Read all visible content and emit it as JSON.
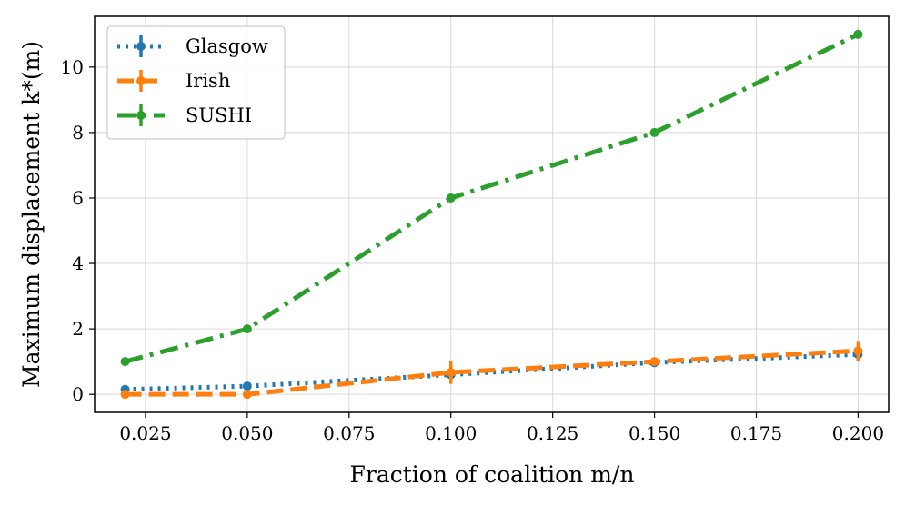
{
  "chart_data": {
    "type": "line",
    "title": "",
    "xlabel": "Fraction of coalition m/n",
    "ylabel": "Maximum displacement k*(m)",
    "xlim": [
      0.0125,
      0.2075
    ],
    "ylim": [
      -0.55,
      11.55
    ],
    "xticks": [
      0.025,
      0.05,
      0.075,
      0.1,
      0.125,
      0.15,
      0.175,
      0.2
    ],
    "xtick_labels": [
      "0.025",
      "0.050",
      "0.075",
      "0.100",
      "0.125",
      "0.150",
      "0.175",
      "0.200"
    ],
    "yticks": [
      0,
      2,
      4,
      6,
      8,
      10
    ],
    "ytick_labels": [
      "0",
      "2",
      "4",
      "6",
      "8",
      "10"
    ],
    "grid": true,
    "legend_position": "top-left",
    "x": [
      0.02,
      0.05,
      0.1,
      0.15,
      0.2
    ],
    "series": [
      {
        "name": "Glasgow",
        "values": [
          0.15,
          0.25,
          0.6,
          0.97,
          1.22
        ],
        "error": [
          0.05,
          0.08,
          0.2,
          0.1,
          0.2
        ],
        "color": "#1f77b4",
        "style": "dotted"
      },
      {
        "name": "Irish",
        "values": [
          0.0,
          0.0,
          0.67,
          1.0,
          1.33
        ],
        "error": [
          0.0,
          0.0,
          0.35,
          0.05,
          0.3
        ],
        "color": "#ff7f0e",
        "style": "dashed"
      },
      {
        "name": "SUSHI",
        "values": [
          1.0,
          2.0,
          6.0,
          8.0,
          11.0
        ],
        "error": [
          0.0,
          0.0,
          0.0,
          0.0,
          0.0
        ],
        "color": "#2ca02c",
        "style": "dashdot"
      }
    ]
  }
}
